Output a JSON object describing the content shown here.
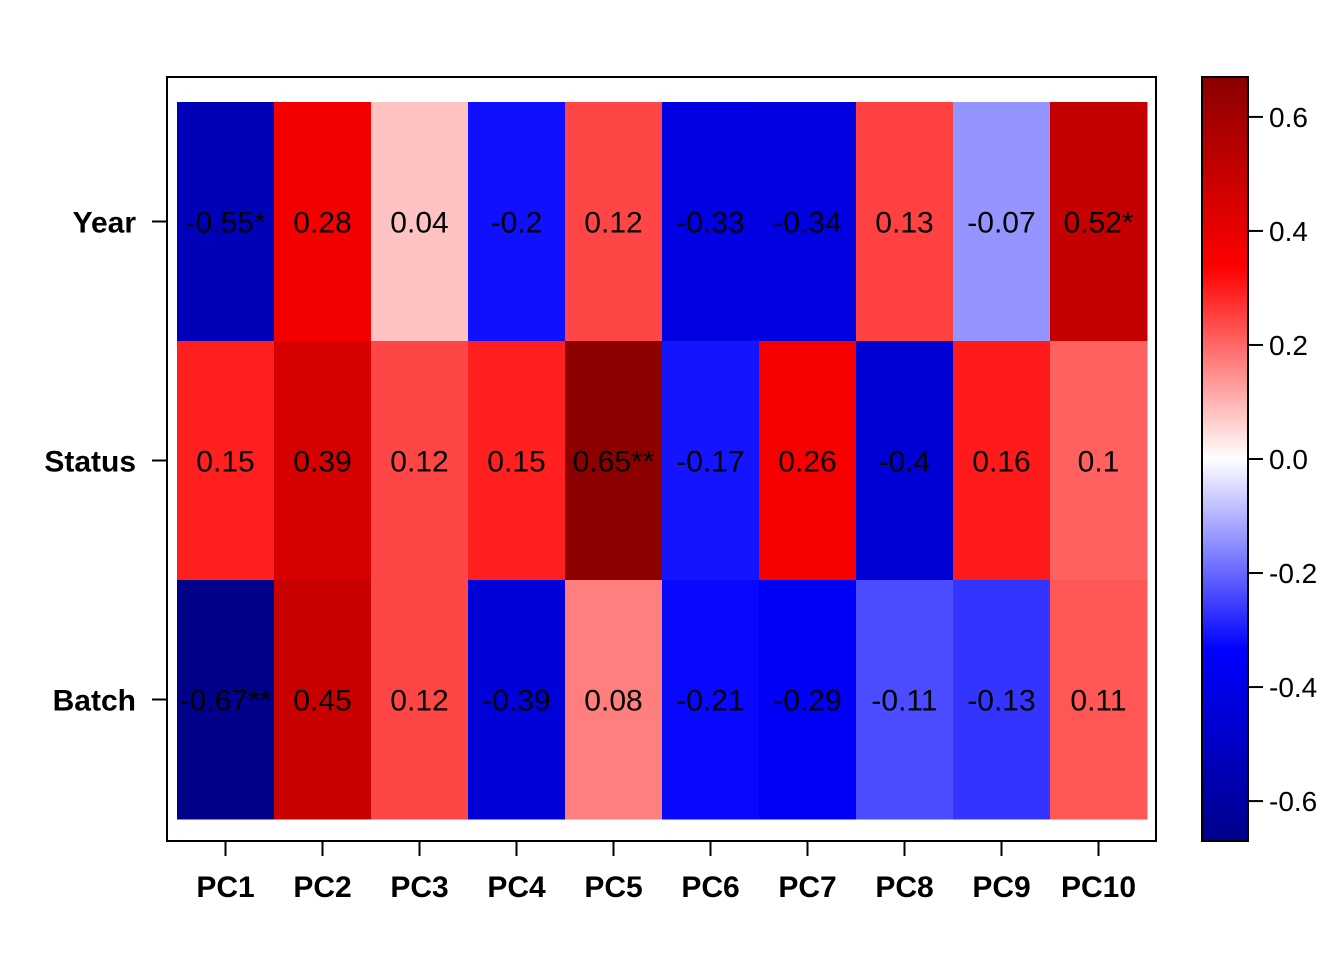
{
  "chart_data": {
    "type": "heatmap",
    "title": "",
    "xlabel": "",
    "ylabel": "",
    "columns": [
      "PC1",
      "PC2",
      "PC3",
      "PC4",
      "PC5",
      "PC6",
      "PC7",
      "PC8",
      "PC9",
      "PC10"
    ],
    "rows": [
      "Year",
      "Status",
      "Batch"
    ],
    "values": [
      [
        -0.55,
        0.28,
        0.04,
        -0.2,
        0.12,
        -0.33,
        -0.34,
        0.13,
        -0.07,
        0.52
      ],
      [
        0.15,
        0.39,
        0.12,
        0.15,
        0.65,
        -0.17,
        0.26,
        -0.4,
        0.16,
        0.1
      ],
      [
        -0.67,
        0.45,
        0.12,
        -0.39,
        0.08,
        -0.21,
        -0.29,
        -0.11,
        -0.13,
        0.11
      ]
    ],
    "cell_labels": [
      [
        "-0.55*",
        "0.28",
        "0.04",
        "-0.2",
        "0.12",
        "-0.33",
        "-0.34",
        "0.13",
        "-0.07",
        "0.52*"
      ],
      [
        "0.15",
        "0.39",
        "0.12",
        "0.15",
        "0.65**",
        "-0.17",
        "0.26",
        "-0.4",
        "0.16",
        "0.1"
      ],
      [
        "-0.67**",
        "0.45",
        "0.12",
        "-0.39",
        "0.08",
        "-0.21",
        "-0.29",
        "-0.11",
        "-0.13",
        "0.11"
      ]
    ],
    "cell_colors": [
      [
        "#0000b8",
        "#f40000",
        "#ffc2c2",
        "#1010ff",
        "#ff4646",
        "#0000e2",
        "#0000e0",
        "#ff4141",
        "#9494ff",
        "#c40000"
      ],
      [
        "#ff1f1f",
        "#d70000",
        "#ff4646",
        "#ff1f1f",
        "#8c0000",
        "#1414ff",
        "#f70000",
        "#0000d5",
        "#ff1b1b",
        "#ff6161"
      ],
      [
        "#00008b",
        "#c90000",
        "#ff4646",
        "#0000d9",
        "#ff7f7f",
        "#0808ff",
        "#0000f6",
        "#4b4bff",
        "#3434ff",
        "#ff5656"
      ]
    ],
    "colorbar": {
      "range": [
        -0.67,
        0.67
      ],
      "ticks": [
        -0.6,
        -0.4,
        -0.2,
        0.0,
        0.2,
        0.4,
        0.6
      ],
      "tick_labels": [
        "-0.6",
        "-0.4",
        "-0.2",
        "0.0",
        "0.2",
        "0.4",
        "0.6"
      ],
      "color_stops": [
        "#00008b",
        "#0000ff",
        "#ffffff",
        "#ff0000",
        "#8b0000"
      ]
    }
  }
}
